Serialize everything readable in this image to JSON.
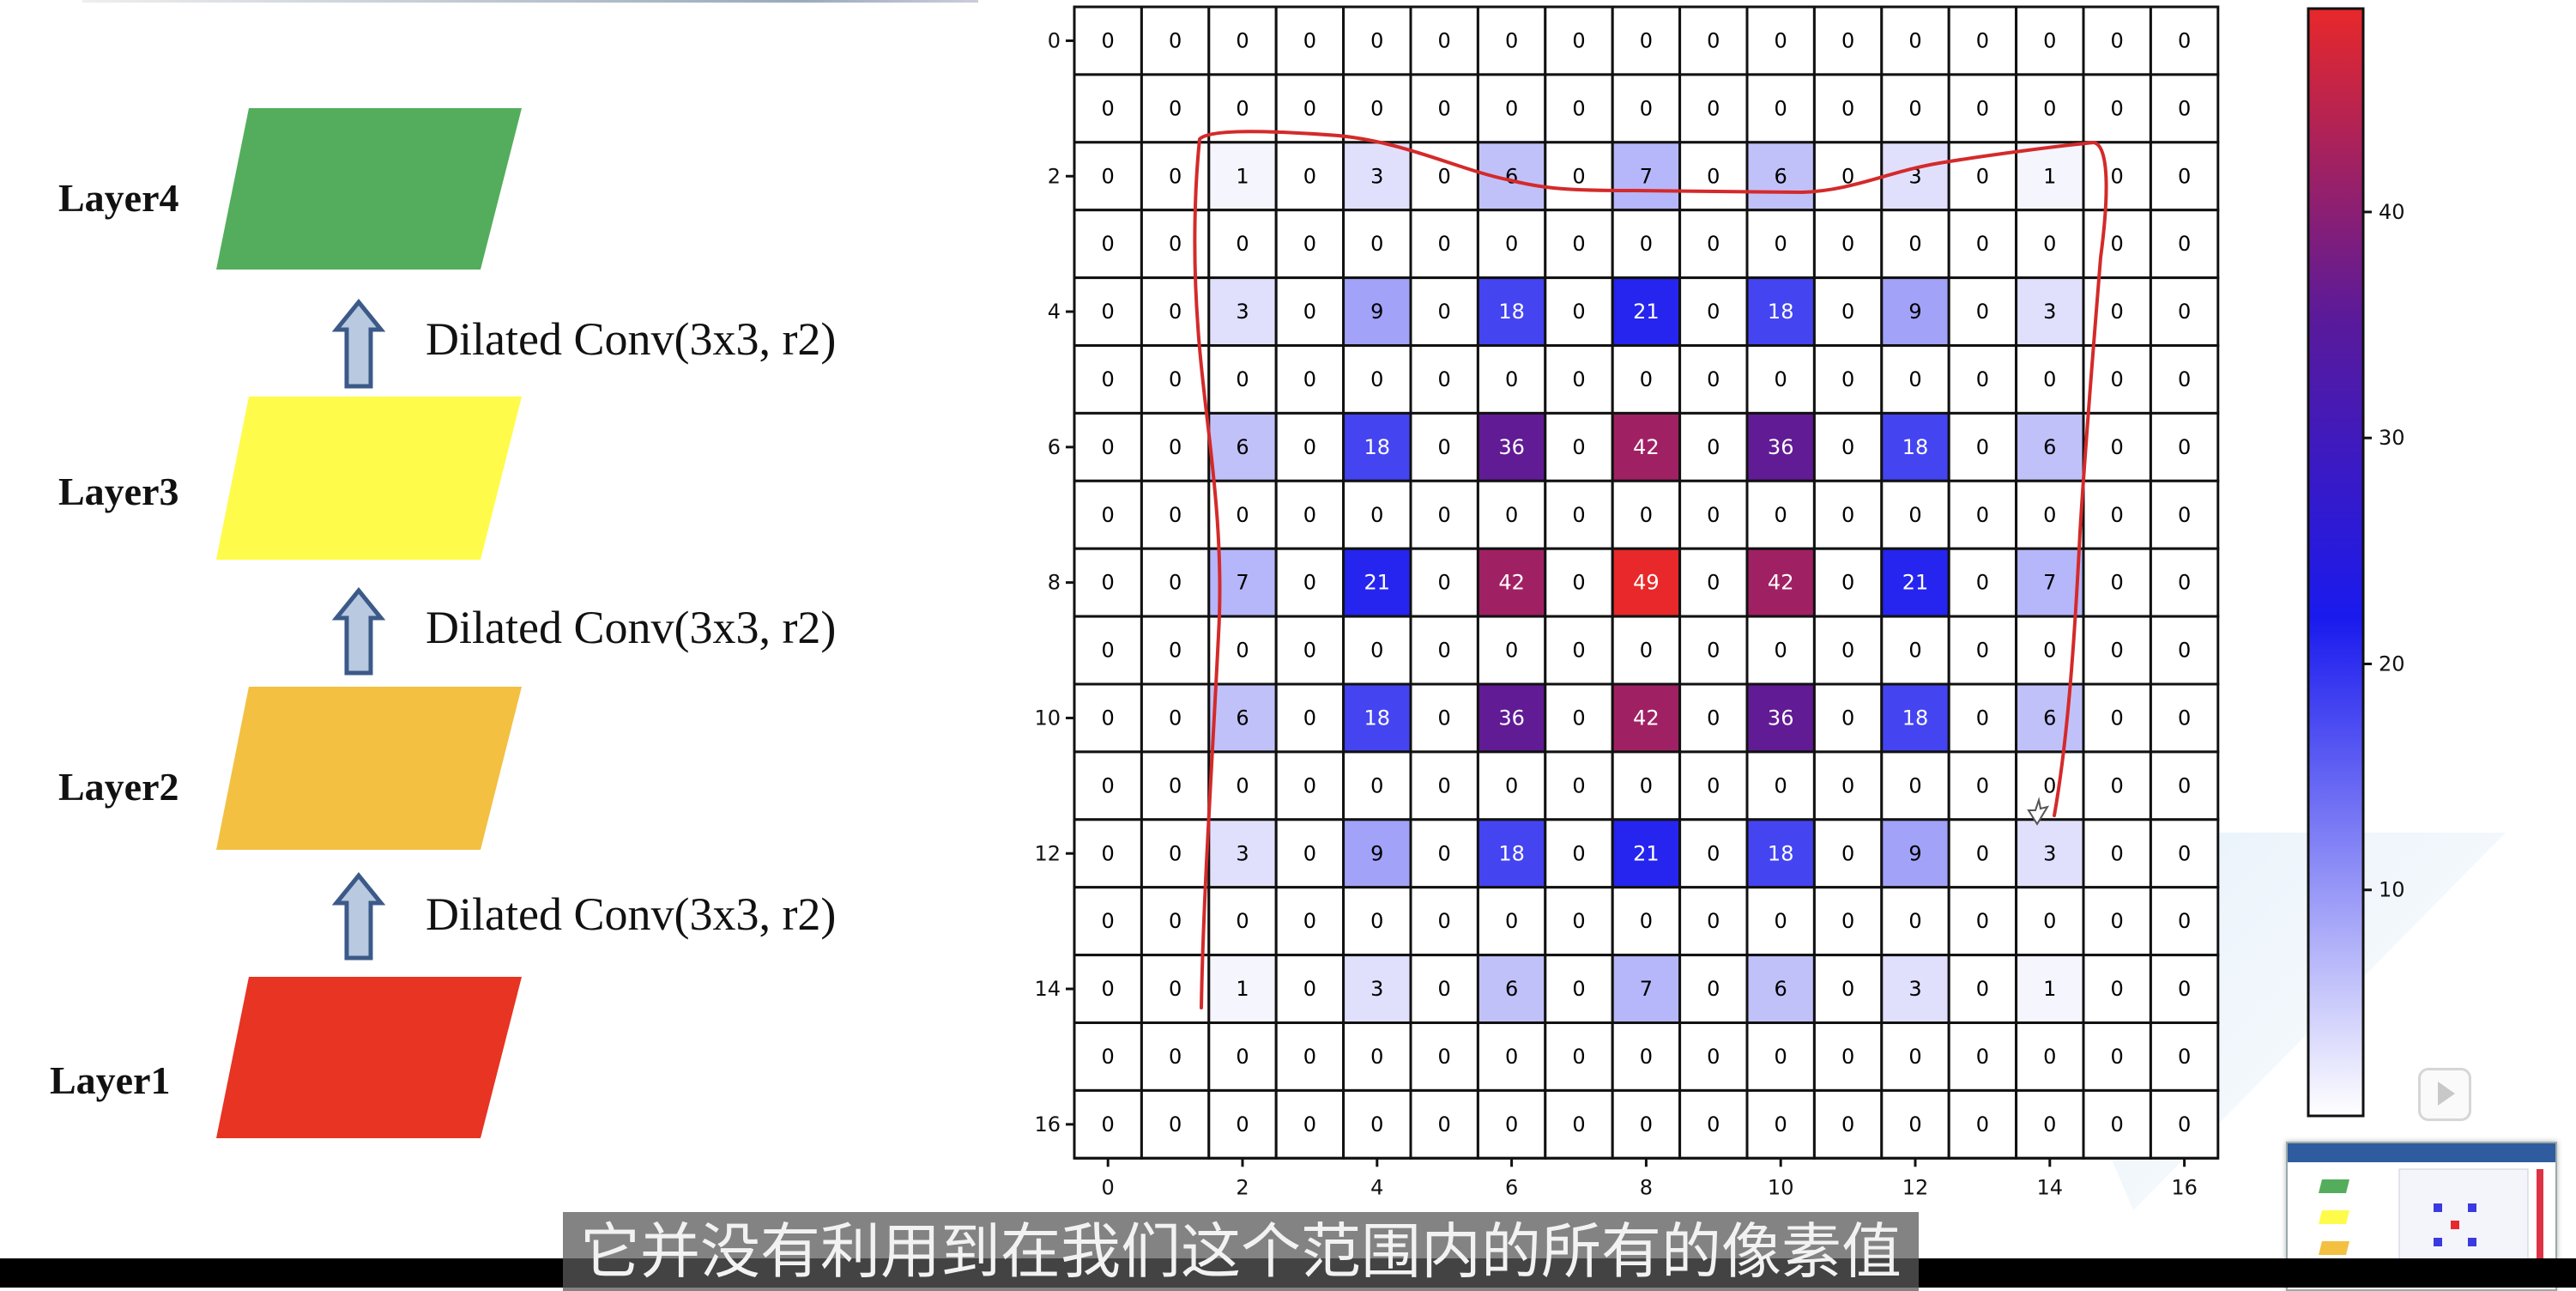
{
  "diagram": {
    "layers": [
      {
        "label": "Layer4",
        "color": "#54ad5c"
      },
      {
        "label": "Layer3",
        "color": "#fffb4a"
      },
      {
        "label": "Layer2",
        "color": "#f3c042"
      },
      {
        "label": "Layer1",
        "color": "#e73423"
      }
    ],
    "convs": [
      {
        "label": "Dilated Conv(3x3, r2)"
      },
      {
        "label": "Dilated Conv(3x3, r2)"
      },
      {
        "label": "Dilated Conv(3x3, r2)"
      }
    ],
    "arrow_color": "#b9c9e0"
  },
  "chart_data": {
    "type": "heatmap",
    "rows": 17,
    "cols": 17,
    "x_ticks": [
      "0",
      "2",
      "4",
      "6",
      "8",
      "10",
      "12",
      "14",
      "16"
    ],
    "y_ticks": [
      "0",
      "2",
      "4",
      "6",
      "8",
      "10",
      "12",
      "14",
      "16"
    ],
    "values": [
      [
        0,
        0,
        0,
        0,
        0,
        0,
        0,
        0,
        0,
        0,
        0,
        0,
        0,
        0,
        0,
        0,
        0
      ],
      [
        0,
        0,
        0,
        0,
        0,
        0,
        0,
        0,
        0,
        0,
        0,
        0,
        0,
        0,
        0,
        0,
        0
      ],
      [
        0,
        0,
        1,
        0,
        3,
        0,
        6,
        0,
        7,
        0,
        6,
        0,
        3,
        0,
        1,
        0,
        0
      ],
      [
        0,
        0,
        0,
        0,
        0,
        0,
        0,
        0,
        0,
        0,
        0,
        0,
        0,
        0,
        0,
        0,
        0
      ],
      [
        0,
        0,
        3,
        0,
        9,
        0,
        18,
        0,
        21,
        0,
        18,
        0,
        9,
        0,
        3,
        0,
        0
      ],
      [
        0,
        0,
        0,
        0,
        0,
        0,
        0,
        0,
        0,
        0,
        0,
        0,
        0,
        0,
        0,
        0,
        0
      ],
      [
        0,
        0,
        6,
        0,
        18,
        0,
        36,
        0,
        42,
        0,
        36,
        0,
        18,
        0,
        6,
        0,
        0
      ],
      [
        0,
        0,
        0,
        0,
        0,
        0,
        0,
        0,
        0,
        0,
        0,
        0,
        0,
        0,
        0,
        0,
        0
      ],
      [
        0,
        0,
        7,
        0,
        21,
        0,
        42,
        0,
        49,
        0,
        42,
        0,
        21,
        0,
        7,
        0,
        0
      ],
      [
        0,
        0,
        0,
        0,
        0,
        0,
        0,
        0,
        0,
        0,
        0,
        0,
        0,
        0,
        0,
        0,
        0
      ],
      [
        0,
        0,
        6,
        0,
        18,
        0,
        36,
        0,
        42,
        0,
        36,
        0,
        18,
        0,
        6,
        0,
        0
      ],
      [
        0,
        0,
        0,
        0,
        0,
        0,
        0,
        0,
        0,
        0,
        0,
        0,
        0,
        0,
        0,
        0,
        0
      ],
      [
        0,
        0,
        3,
        0,
        9,
        0,
        18,
        0,
        21,
        0,
        18,
        0,
        9,
        0,
        3,
        0,
        0
      ],
      [
        0,
        0,
        0,
        0,
        0,
        0,
        0,
        0,
        0,
        0,
        0,
        0,
        0,
        0,
        0,
        0,
        0
      ],
      [
        0,
        0,
        1,
        0,
        3,
        0,
        6,
        0,
        7,
        0,
        6,
        0,
        3,
        0,
        1,
        0,
        0
      ],
      [
        0,
        0,
        0,
        0,
        0,
        0,
        0,
        0,
        0,
        0,
        0,
        0,
        0,
        0,
        0,
        0,
        0
      ],
      [
        0,
        0,
        0,
        0,
        0,
        0,
        0,
        0,
        0,
        0,
        0,
        0,
        0,
        0,
        0,
        0,
        0
      ]
    ],
    "vmin": 0,
    "vmax": 49,
    "colormap": "seismic-upper (white to blue to purple to red)",
    "colorbar_ticks": [
      "10",
      "20",
      "30",
      "40"
    ],
    "grid": true,
    "cell_text_color_dark": "#000000",
    "cell_text_color_light": "#ffffff",
    "annotation_color": "#d42a2a"
  },
  "subtitle": "它并没有利用到在我们这个范围内的所有的像素值"
}
